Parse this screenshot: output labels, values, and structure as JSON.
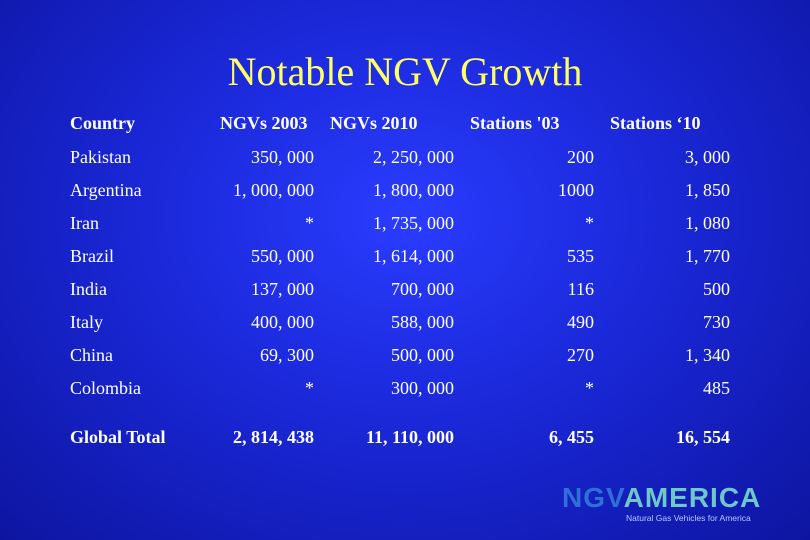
{
  "slide": {
    "title": "Notable NGV Growth"
  },
  "table": {
    "headers": [
      "Country",
      "NGVs 2003",
      "NGVs 2010",
      "Stations '03",
      "Stations ‘10"
    ],
    "rows": [
      [
        "Pakistan",
        "350, 000",
        "2, 250, 000",
        "200",
        "3, 000"
      ],
      [
        "Argentina",
        "1, 000, 000",
        "1, 800, 000",
        "1000",
        "1, 850"
      ],
      [
        "Iran",
        "*",
        "1, 735, 000",
        "*",
        "1, 080"
      ],
      [
        "Brazil",
        "550, 000",
        "1, 614, 000",
        "535",
        "1, 770"
      ],
      [
        "India",
        "137, 000",
        "700, 000",
        "116",
        "500"
      ],
      [
        "Italy",
        "400, 000",
        "588, 000",
        "490",
        "730"
      ],
      [
        "China",
        "69, 300",
        "500, 000",
        "270",
        "1, 340"
      ],
      [
        "Colombia",
        "*",
        "300, 000",
        "*",
        "485"
      ]
    ],
    "total": [
      "Global Total",
      "2, 814, 438",
      "11, 110, 000",
      "6, 455",
      "16, 554"
    ]
  },
  "logo": {
    "part1": "NGV",
    "part2": "AMERICA",
    "tagline": "Natural Gas Vehicles for America"
  }
}
